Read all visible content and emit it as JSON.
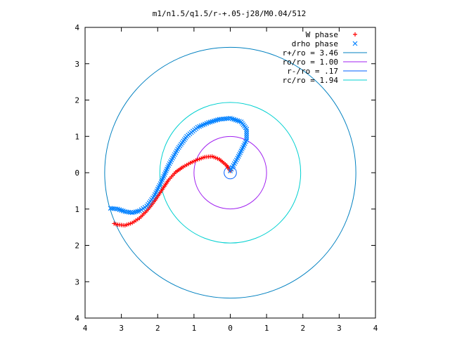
{
  "chart_data": {
    "type": "scatter",
    "title": "m1/n1.5/q1.5/r-+.05-j28/M0.04/512",
    "xlim": [
      -4,
      4
    ],
    "ylim": [
      -4,
      4
    ],
    "x_ticks": [
      {
        "value": -4,
        "label": "4"
      },
      {
        "value": -3,
        "label": "3"
      },
      {
        "value": -2,
        "label": "2"
      },
      {
        "value": -1,
        "label": "1"
      },
      {
        "value": 0,
        "label": "0"
      },
      {
        "value": 1,
        "label": "1"
      },
      {
        "value": 2,
        "label": "2"
      },
      {
        "value": 3,
        "label": "3"
      },
      {
        "value": 4,
        "label": "4"
      }
    ],
    "y_ticks": [
      {
        "value": 4,
        "label": "4"
      },
      {
        "value": 3,
        "label": "3"
      },
      {
        "value": 2,
        "label": "2"
      },
      {
        "value": 1,
        "label": "1"
      },
      {
        "value": 0,
        "label": "0"
      },
      {
        "value": -1,
        "label": "1"
      },
      {
        "value": -2,
        "label": "2"
      },
      {
        "value": -3,
        "label": "3"
      },
      {
        "value": -4,
        "label": "4"
      }
    ],
    "grid": false,
    "legend_position": "top-right",
    "series": [
      {
        "name": "W phase",
        "kind": "points",
        "marker": "+",
        "color": "#ff0000",
        "points": [
          [
            0.0,
            0.05
          ],
          [
            -0.1,
            0.2
          ],
          [
            -0.3,
            0.37
          ],
          [
            -0.5,
            0.45
          ],
          [
            -0.7,
            0.43
          ],
          [
            -0.9,
            0.36
          ],
          [
            -1.1,
            0.27
          ],
          [
            -1.3,
            0.16
          ],
          [
            -1.5,
            0.02
          ],
          [
            -1.7,
            -0.2
          ],
          [
            -1.9,
            -0.5
          ],
          [
            -2.1,
            -0.8
          ],
          [
            -2.3,
            -1.05
          ],
          [
            -2.5,
            -1.25
          ],
          [
            -2.7,
            -1.38
          ],
          [
            -2.9,
            -1.45
          ],
          [
            -3.1,
            -1.43
          ],
          [
            -3.2,
            -1.4
          ]
        ]
      },
      {
        "name": "drho phase",
        "kind": "points",
        "marker": "x",
        "color": "#0080ff",
        "points": [
          [
            0.0,
            0.05
          ],
          [
            0.2,
            0.4
          ],
          [
            0.45,
            0.9
          ],
          [
            0.45,
            1.2
          ],
          [
            0.3,
            1.4
          ],
          [
            0.0,
            1.5
          ],
          [
            -0.3,
            1.47
          ],
          [
            -0.6,
            1.38
          ],
          [
            -0.9,
            1.25
          ],
          [
            -1.2,
            1.0
          ],
          [
            -1.45,
            0.65
          ],
          [
            -1.7,
            0.2
          ],
          [
            -1.9,
            -0.25
          ],
          [
            -2.1,
            -0.65
          ],
          [
            -2.3,
            -0.92
          ],
          [
            -2.5,
            -1.05
          ],
          [
            -2.7,
            -1.1
          ],
          [
            -2.9,
            -1.07
          ],
          [
            -3.1,
            -1.0
          ],
          [
            -3.3,
            -0.98
          ]
        ]
      },
      {
        "name": "r+/ro = 3.46",
        "kind": "circle",
        "radius": 3.46,
        "color": "#0080c0"
      },
      {
        "name": "ro/ro = 1.00",
        "kind": "circle",
        "radius": 1.0,
        "color": "#a020f0"
      },
      {
        "name": "r-/ro = .17",
        "kind": "circle",
        "radius": 0.17,
        "color": "#0060ff"
      },
      {
        "name": "rc/ro = 1.94",
        "kind": "circle",
        "radius": 1.94,
        "color": "#00d0d0"
      }
    ]
  }
}
